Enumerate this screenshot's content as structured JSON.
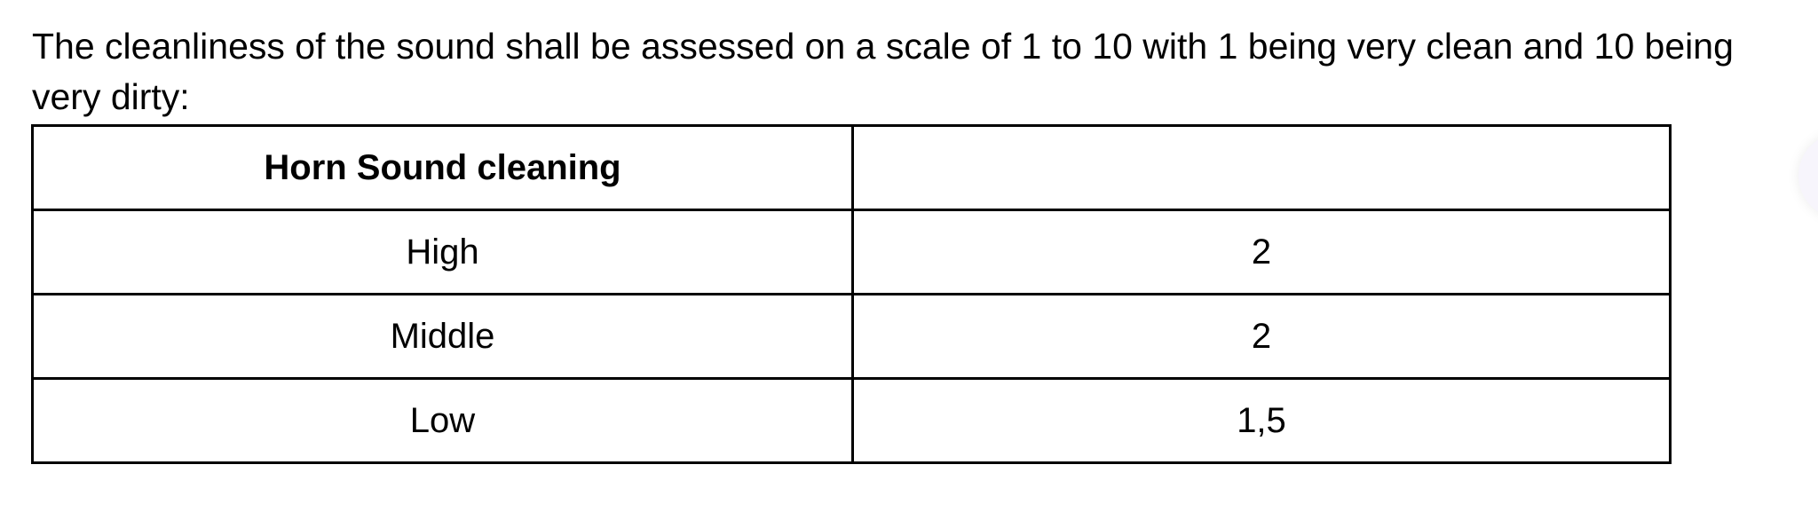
{
  "intro_text": "The cleanliness of the sound shall be assessed on a scale of 1 to 10 with 1 being very clean and 10 being very dirty:",
  "table": {
    "header": [
      "Horn Sound cleaning",
      ""
    ],
    "rows": [
      [
        "High",
        "2"
      ],
      [
        "Middle",
        "2"
      ],
      [
        "Low",
        "1,5"
      ]
    ]
  }
}
